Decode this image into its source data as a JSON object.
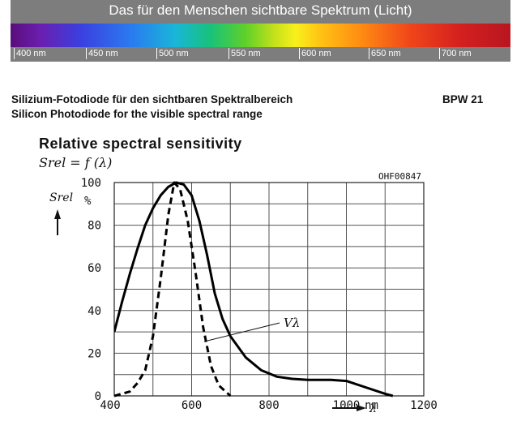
{
  "banner": {
    "title": "Das für den Menschen sichtbare Spektrum (Licht)",
    "ticks": [
      "400 nm",
      "450 nm",
      "500 nm",
      "550 nm",
      "600 nm",
      "650 nm",
      "700 nm"
    ]
  },
  "heading": {
    "line1": "Silizium-Fotodiode für den sichtbaren Spektralbereich",
    "line2": "Silicon Photodiode for the visible spectral range",
    "part": "BPW 21"
  },
  "chart_data": {
    "type": "line",
    "title": "Relative spectral sensitivity",
    "formula": "Srel = f (λ)",
    "code": "OHF00847",
    "ylabel": "Srel",
    "yunit": "%",
    "xunit": "nm",
    "xlabel": "λ",
    "xlim": [
      400,
      1200
    ],
    "ylim": [
      0,
      100
    ],
    "xticks": [
      400,
      600,
      800,
      1000,
      1200
    ],
    "yticks": [
      0,
      20,
      40,
      60,
      80,
      100
    ],
    "grid": true,
    "series": [
      {
        "style": "solid",
        "points": [
          [
            400,
            30
          ],
          [
            420,
            44
          ],
          [
            440,
            57
          ],
          [
            460,
            69
          ],
          [
            480,
            80
          ],
          [
            500,
            88
          ],
          [
            520,
            94
          ],
          [
            540,
            98
          ],
          [
            560,
            100
          ],
          [
            580,
            99
          ],
          [
            600,
            94
          ],
          [
            620,
            82
          ],
          [
            640,
            66
          ],
          [
            660,
            48
          ],
          [
            680,
            36
          ],
          [
            700,
            28
          ],
          [
            740,
            18
          ],
          [
            780,
            12
          ],
          [
            820,
            9
          ],
          [
            860,
            8
          ],
          [
            900,
            7.5
          ],
          [
            960,
            7.5
          ],
          [
            1000,
            7
          ],
          [
            1050,
            4
          ],
          [
            1100,
            1
          ],
          [
            1120,
            0
          ]
        ]
      },
      {
        "name": "Vλ",
        "style": "dashed",
        "points": [
          [
            400,
            0
          ],
          [
            440,
            2
          ],
          [
            460,
            6
          ],
          [
            480,
            12
          ],
          [
            500,
            28
          ],
          [
            520,
            55
          ],
          [
            540,
            85
          ],
          [
            555,
            100
          ],
          [
            570,
            97
          ],
          [
            590,
            82
          ],
          [
            610,
            58
          ],
          [
            630,
            32
          ],
          [
            650,
            14
          ],
          [
            670,
            5
          ],
          [
            700,
            0
          ]
        ]
      }
    ],
    "annotation": {
      "label": "Vλ"
    }
  }
}
